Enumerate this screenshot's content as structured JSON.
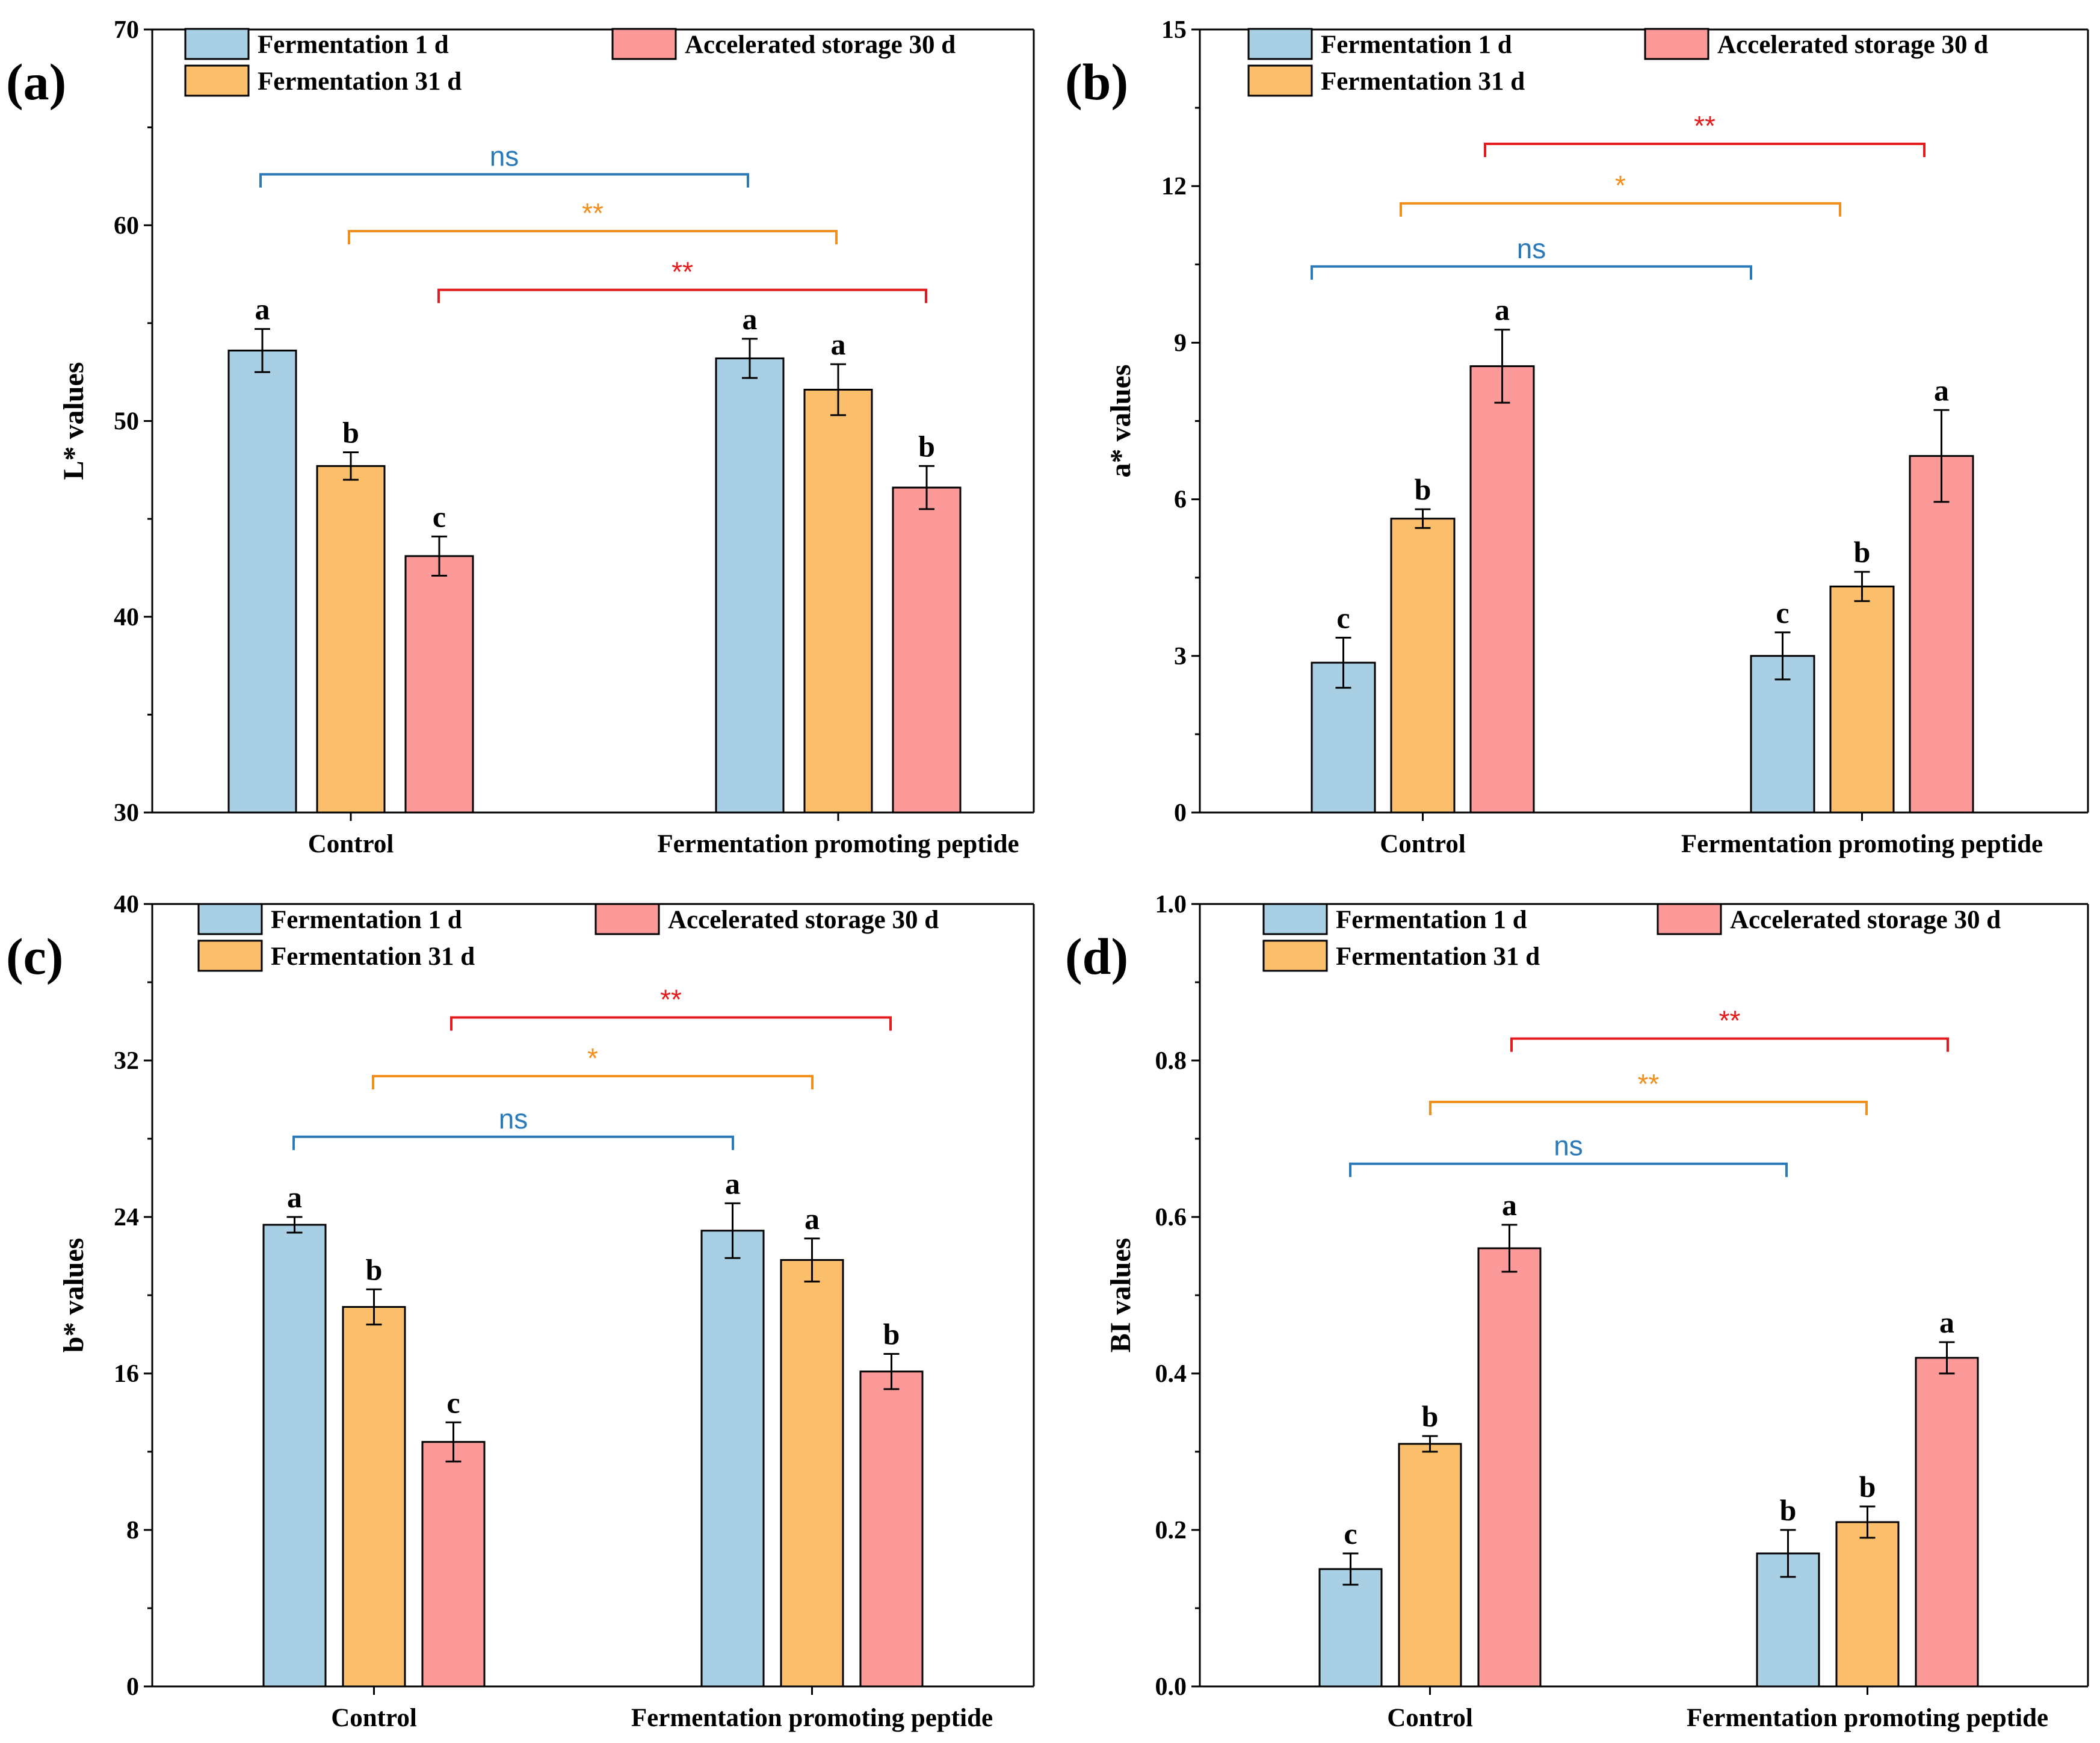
{
  "colors": {
    "series": [
      "#a8cfe3",
      "#fbbf6c",
      "#fb9a99"
    ],
    "ns": "#2a7ab9",
    "orange_sig": "#f28e1c",
    "red_sig": "#e41a1c"
  },
  "chart_data": [
    {
      "type": "bar",
      "panel": "(a)",
      "ylabel": "L* values",
      "ylim": [
        30,
        70
      ],
      "yticks": [
        30,
        40,
        50,
        60,
        70
      ],
      "ytick_labels": [
        "30",
        "40",
        "50",
        "60",
        "70"
      ],
      "minor_per_major": 1,
      "categories": [
        "Control",
        "Fermentation promoting peptide"
      ],
      "series": [
        {
          "name": "Fermentation 1 d",
          "values": [
            53.6,
            53.2
          ],
          "errors": [
            1.1,
            1.0
          ],
          "letters": [
            "a",
            "a"
          ]
        },
        {
          "name": "Fermentation 31 d",
          "values": [
            47.7,
            51.6
          ],
          "errors": [
            0.7,
            1.3
          ],
          "letters": [
            "b",
            "a"
          ]
        },
        {
          "name": "Accelerated storage 30 d",
          "values": [
            43.1,
            46.6
          ],
          "errors": [
            1.0,
            1.1
          ],
          "letters": [
            "c",
            "b"
          ]
        }
      ],
      "significance": [
        {
          "series": 0,
          "label": "ns",
          "y": 62.6
        },
        {
          "series": 1,
          "label": "**",
          "y": 59.7
        },
        {
          "series": 2,
          "label": "**",
          "y": 56.7
        }
      ]
    },
    {
      "type": "bar",
      "panel": "(b)",
      "ylabel": "a* values",
      "ylim": [
        0,
        15
      ],
      "yticks": [
        0,
        3,
        6,
        9,
        12,
        15
      ],
      "ytick_labels": [
        "0",
        "3",
        "6",
        "9",
        "12",
        "15"
      ],
      "minor_per_major": 1,
      "categories": [
        "Control",
        "Fermentation promoting peptide"
      ],
      "series": [
        {
          "name": "Fermentation 1 d",
          "values": [
            2.87,
            3.0
          ],
          "errors": [
            0.48,
            0.45
          ],
          "letters": [
            "c",
            "c"
          ]
        },
        {
          "name": "Fermentation 31 d",
          "values": [
            5.63,
            4.33
          ],
          "errors": [
            0.18,
            0.28
          ],
          "letters": [
            "b",
            "b"
          ]
        },
        {
          "name": "Accelerated storage 30 d",
          "values": [
            8.55,
            6.83
          ],
          "errors": [
            0.7,
            0.88
          ],
          "letters": [
            "a",
            "a"
          ]
        }
      ],
      "significance": [
        {
          "series": 0,
          "label": "ns",
          "y": 10.46
        },
        {
          "series": 1,
          "label": "*",
          "y": 11.67
        },
        {
          "series": 2,
          "label": "**",
          "y": 12.81
        }
      ]
    },
    {
      "type": "bar",
      "panel": "(c)",
      "ylabel": "b* values",
      "ylim": [
        0,
        40
      ],
      "yticks": [
        0,
        8,
        16,
        24,
        32,
        40
      ],
      "ytick_labels": [
        "0",
        "8",
        "16",
        "24",
        "32",
        "40"
      ],
      "minor_per_major": 1,
      "categories": [
        "Control",
        "Fermentation promoting peptide"
      ],
      "series": [
        {
          "name": "Fermentation 1 d",
          "values": [
            23.6,
            23.3
          ],
          "errors": [
            0.4,
            1.4
          ],
          "letters": [
            "a",
            "a"
          ]
        },
        {
          "name": "Fermentation 31 d",
          "values": [
            19.4,
            21.8
          ],
          "errors": [
            0.9,
            1.1
          ],
          "letters": [
            "b",
            "a"
          ]
        },
        {
          "name": "Accelerated storage 30 d",
          "values": [
            12.5,
            16.1
          ],
          "errors": [
            1.0,
            0.9
          ],
          "letters": [
            "c",
            "b"
          ]
        }
      ],
      "significance": [
        {
          "series": 0,
          "label": "ns",
          "y": 28.1
        },
        {
          "series": 1,
          "label": "*",
          "y": 31.2
        },
        {
          "series": 2,
          "label": "**",
          "y": 34.2
        }
      ]
    },
    {
      "type": "bar",
      "panel": "(d)",
      "ylabel": "BI values",
      "ylim": [
        0,
        1.0
      ],
      "yticks": [
        0,
        0.2,
        0.4,
        0.6,
        0.8,
        1.0
      ],
      "ytick_labels": [
        "0.0",
        "0.2",
        "0.4",
        "0.6",
        "0.8",
        "1.0"
      ],
      "minor_per_major": 1,
      "categories": [
        "Control",
        "Fermentation promoting peptide"
      ],
      "series": [
        {
          "name": "Fermentation 1 d",
          "values": [
            0.15,
            0.17
          ],
          "errors": [
            0.02,
            0.03
          ],
          "letters": [
            "c",
            "b"
          ]
        },
        {
          "name": "Fermentation 31 d",
          "values": [
            0.31,
            0.21
          ],
          "errors": [
            0.01,
            0.02
          ],
          "letters": [
            "b",
            "b"
          ]
        },
        {
          "name": "Accelerated storage 30 d",
          "values": [
            0.56,
            0.42
          ],
          "errors": [
            0.03,
            0.02
          ],
          "letters": [
            "a",
            "a"
          ]
        }
      ],
      "significance": [
        {
          "series": 0,
          "label": "ns",
          "y": 0.668
        },
        {
          "series": 1,
          "label": "**",
          "y": 0.747
        },
        {
          "series": 2,
          "label": "**",
          "y": 0.828
        }
      ]
    }
  ]
}
